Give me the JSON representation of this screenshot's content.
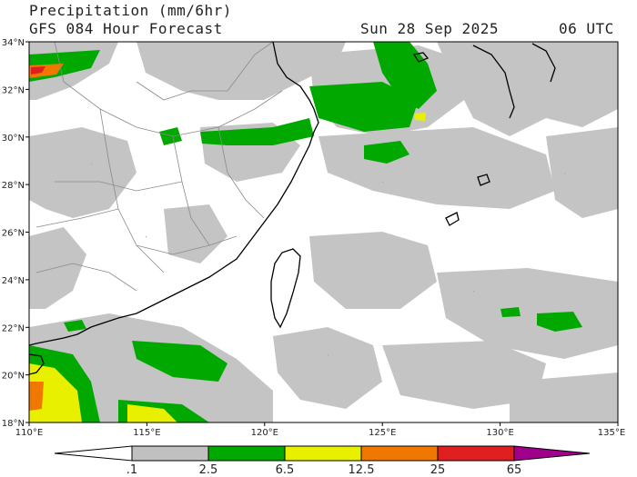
{
  "header": {
    "title": "Precipitation (mm/6hr)",
    "subtitle": "GFS 084 Hour Forecast",
    "date": "Sun 28 Sep 2025",
    "time": "06 UTC"
  },
  "map": {
    "lat_labels": [
      "34°N",
      "32°N",
      "30°N",
      "28°N",
      "26°N",
      "24°N",
      "22°N",
      "20°N",
      "18°N"
    ],
    "lon_labels": [
      "110°E",
      "115°E",
      "120°E",
      "125°E",
      "130°E",
      "135°E"
    ],
    "extent": {
      "lon": [
        110,
        135
      ],
      "lat": [
        18,
        34
      ]
    }
  },
  "colorbar": {
    "labels": [
      ".1",
      "2.5",
      "6.5",
      "12.5",
      "25",
      "65"
    ],
    "colors": [
      "#ffffff",
      "#c0c0c0",
      "#00a800",
      "#e8f000",
      "#f07800",
      "#e02020",
      "#a0008c"
    ]
  }
}
